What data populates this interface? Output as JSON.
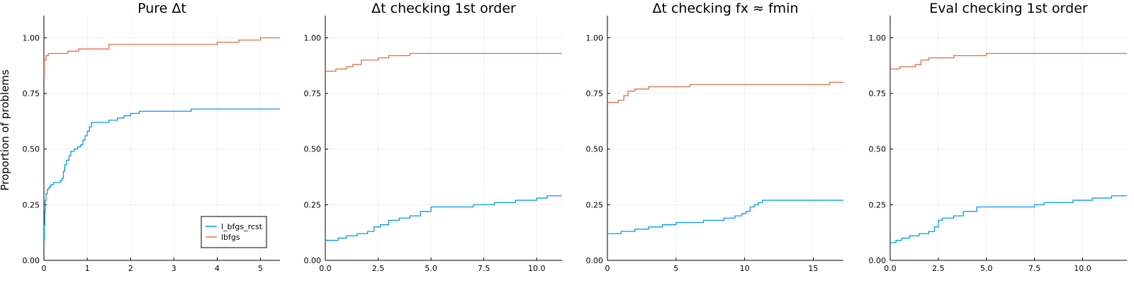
{
  "figure": {
    "ylabel": "Proportion of problems",
    "legend": {
      "placement": "bottom-right",
      "entries": [
        {
          "name": "l_bfgs_rcst",
          "color": "#009AFA"
        },
        {
          "name": "lbfgs",
          "color": "#E36F47"
        }
      ]
    }
  },
  "chart_data": [
    {
      "type": "line",
      "step": true,
      "title": "Pure Δt",
      "xlim": [
        0,
        5.45
      ],
      "ylim": [
        0,
        1.1
      ],
      "xticks": [
        0,
        1,
        2,
        3,
        4,
        5
      ],
      "xtick_labels": [
        "0",
        "1",
        "2",
        "3",
        "4",
        "5"
      ],
      "yticks": [
        0,
        0.25,
        0.5,
        0.75,
        1.0
      ],
      "ytick_labels": [
        "0.00",
        "0.25",
        "0.50",
        "0.75",
        "1.00"
      ],
      "grid": true,
      "series": [
        {
          "name": "l_bfgs_rcst",
          "color": "#009AFA",
          "points": [
            [
              0,
              0.09
            ],
            [
              0.01,
              0.16
            ],
            [
              0.02,
              0.22
            ],
            [
              0.03,
              0.27
            ],
            [
              0.05,
              0.3
            ],
            [
              0.08,
              0.32
            ],
            [
              0.12,
              0.33
            ],
            [
              0.16,
              0.34
            ],
            [
              0.22,
              0.35
            ],
            [
              0.38,
              0.36
            ],
            [
              0.42,
              0.37
            ],
            [
              0.45,
              0.4
            ],
            [
              0.48,
              0.43
            ],
            [
              0.52,
              0.45
            ],
            [
              0.58,
              0.47
            ],
            [
              0.62,
              0.49
            ],
            [
              0.7,
              0.5
            ],
            [
              0.78,
              0.51
            ],
            [
              0.85,
              0.52
            ],
            [
              0.9,
              0.54
            ],
            [
              0.95,
              0.56
            ],
            [
              1.0,
              0.58
            ],
            [
              1.05,
              0.6
            ],
            [
              1.1,
              0.62
            ],
            [
              1.25,
              0.62
            ],
            [
              1.5,
              0.63
            ],
            [
              1.7,
              0.64
            ],
            [
              1.85,
              0.65
            ],
            [
              2.0,
              0.66
            ],
            [
              2.2,
              0.67
            ],
            [
              3.4,
              0.68
            ],
            [
              5.45,
              0.68
            ]
          ]
        },
        {
          "name": "lbfgs",
          "color": "#E36F47",
          "points": [
            [
              0,
              0.83
            ],
            [
              0.01,
              0.9
            ],
            [
              0.05,
              0.92
            ],
            [
              0.1,
              0.93
            ],
            [
              0.55,
              0.94
            ],
            [
              0.8,
              0.95
            ],
            [
              1.5,
              0.97
            ],
            [
              4.0,
              0.98
            ],
            [
              4.5,
              0.99
            ],
            [
              5.0,
              1.0
            ],
            [
              5.45,
              1.0
            ]
          ]
        }
      ]
    },
    {
      "type": "line",
      "step": true,
      "title": "Δt checking 1st order",
      "xlim": [
        0,
        11.2
      ],
      "ylim": [
        0,
        1.1
      ],
      "xticks": [
        0,
        2.5,
        5,
        7.5,
        10
      ],
      "xtick_labels": [
        "0.0",
        "2.5",
        "5.0",
        "7.5",
        "10.0"
      ],
      "yticks": [
        0,
        0.25,
        0.5,
        0.75,
        1.0
      ],
      "ytick_labels": [
        "0.00",
        "0.25",
        "0.50",
        "0.75",
        "1.00"
      ],
      "grid": true,
      "series": [
        {
          "name": "l_bfgs_rcst",
          "color": "#009AFA",
          "points": [
            [
              0,
              0.09
            ],
            [
              0.6,
              0.1
            ],
            [
              1.0,
              0.11
            ],
            [
              1.5,
              0.12
            ],
            [
              2.0,
              0.13
            ],
            [
              2.3,
              0.15
            ],
            [
              2.6,
              0.16
            ],
            [
              3.0,
              0.18
            ],
            [
              3.5,
              0.19
            ],
            [
              4.0,
              0.2
            ],
            [
              4.5,
              0.22
            ],
            [
              5.0,
              0.24
            ],
            [
              7.0,
              0.25
            ],
            [
              8.0,
              0.26
            ],
            [
              9.0,
              0.27
            ],
            [
              10.0,
              0.28
            ],
            [
              10.5,
              0.29
            ],
            [
              11.2,
              0.29
            ]
          ]
        },
        {
          "name": "lbfgs",
          "color": "#E36F47",
          "points": [
            [
              0,
              0.85
            ],
            [
              0.5,
              0.86
            ],
            [
              1.0,
              0.87
            ],
            [
              1.3,
              0.88
            ],
            [
              1.7,
              0.9
            ],
            [
              2.5,
              0.91
            ],
            [
              3.0,
              0.92
            ],
            [
              4.0,
              0.93
            ],
            [
              11.2,
              0.93
            ]
          ]
        }
      ]
    },
    {
      "type": "line",
      "step": true,
      "title": "Δt checking fx ≈ fmin",
      "xlim": [
        0,
        17.2
      ],
      "ylim": [
        0,
        1.1
      ],
      "xticks": [
        0,
        5,
        10,
        15
      ],
      "xtick_labels": [
        "0",
        "5",
        "10",
        "15"
      ],
      "yticks": [
        0,
        0.25,
        0.5,
        0.75,
        1.0
      ],
      "ytick_labels": [
        "0.00",
        "0.25",
        "0.50",
        "0.75",
        "1.00"
      ],
      "grid": true,
      "series": [
        {
          "name": "l_bfgs_rcst",
          "color": "#009AFA",
          "points": [
            [
              0,
              0.12
            ],
            [
              1.0,
              0.13
            ],
            [
              2.0,
              0.14
            ],
            [
              3.0,
              0.15
            ],
            [
              4.0,
              0.16
            ],
            [
              5.0,
              0.17
            ],
            [
              7.0,
              0.18
            ],
            [
              8.5,
              0.19
            ],
            [
              9.3,
              0.2
            ],
            [
              9.8,
              0.21
            ],
            [
              10.1,
              0.22
            ],
            [
              10.4,
              0.24
            ],
            [
              10.7,
              0.25
            ],
            [
              11.0,
              0.26
            ],
            [
              11.3,
              0.27
            ],
            [
              17.2,
              0.27
            ]
          ]
        },
        {
          "name": "lbfgs",
          "color": "#E36F47",
          "points": [
            [
              0,
              0.71
            ],
            [
              0.8,
              0.72
            ],
            [
              1.2,
              0.74
            ],
            [
              1.5,
              0.76
            ],
            [
              2.0,
              0.77
            ],
            [
              3.0,
              0.78
            ],
            [
              6.0,
              0.79
            ],
            [
              16.2,
              0.8
            ],
            [
              17.2,
              0.8
            ]
          ]
        }
      ]
    },
    {
      "type": "line",
      "step": true,
      "title": "Eval checking 1st order",
      "xlim": [
        0,
        12.3
      ],
      "ylim": [
        0,
        1.1
      ],
      "xticks": [
        0,
        2.5,
        5,
        7.5,
        10
      ],
      "xtick_labels": [
        "0.0",
        "2.5",
        "5.0",
        "7.5",
        "10.0"
      ],
      "yticks": [
        0,
        0.25,
        0.5,
        0.75,
        1.0
      ],
      "ytick_labels": [
        "0.00",
        "0.25",
        "0.50",
        "0.75",
        "1.00"
      ],
      "grid": true,
      "series": [
        {
          "name": "l_bfgs_rcst",
          "color": "#009AFA",
          "points": [
            [
              0,
              0.08
            ],
            [
              0.3,
              0.09
            ],
            [
              0.6,
              0.1
            ],
            [
              1.0,
              0.11
            ],
            [
              1.5,
              0.12
            ],
            [
              2.0,
              0.13
            ],
            [
              2.3,
              0.15
            ],
            [
              2.5,
              0.18
            ],
            [
              2.7,
              0.19
            ],
            [
              3.3,
              0.2
            ],
            [
              3.8,
              0.22
            ],
            [
              4.5,
              0.24
            ],
            [
              7.5,
              0.25
            ],
            [
              8.0,
              0.26
            ],
            [
              9.5,
              0.27
            ],
            [
              10.5,
              0.28
            ],
            [
              11.5,
              0.29
            ],
            [
              12.3,
              0.29
            ]
          ]
        },
        {
          "name": "lbfgs",
          "color": "#E36F47",
          "points": [
            [
              0,
              0.86
            ],
            [
              0.5,
              0.87
            ],
            [
              1.3,
              0.88
            ],
            [
              1.6,
              0.9
            ],
            [
              2.0,
              0.91
            ],
            [
              3.3,
              0.92
            ],
            [
              5.0,
              0.93
            ],
            [
              12.3,
              0.93
            ]
          ]
        }
      ]
    }
  ]
}
